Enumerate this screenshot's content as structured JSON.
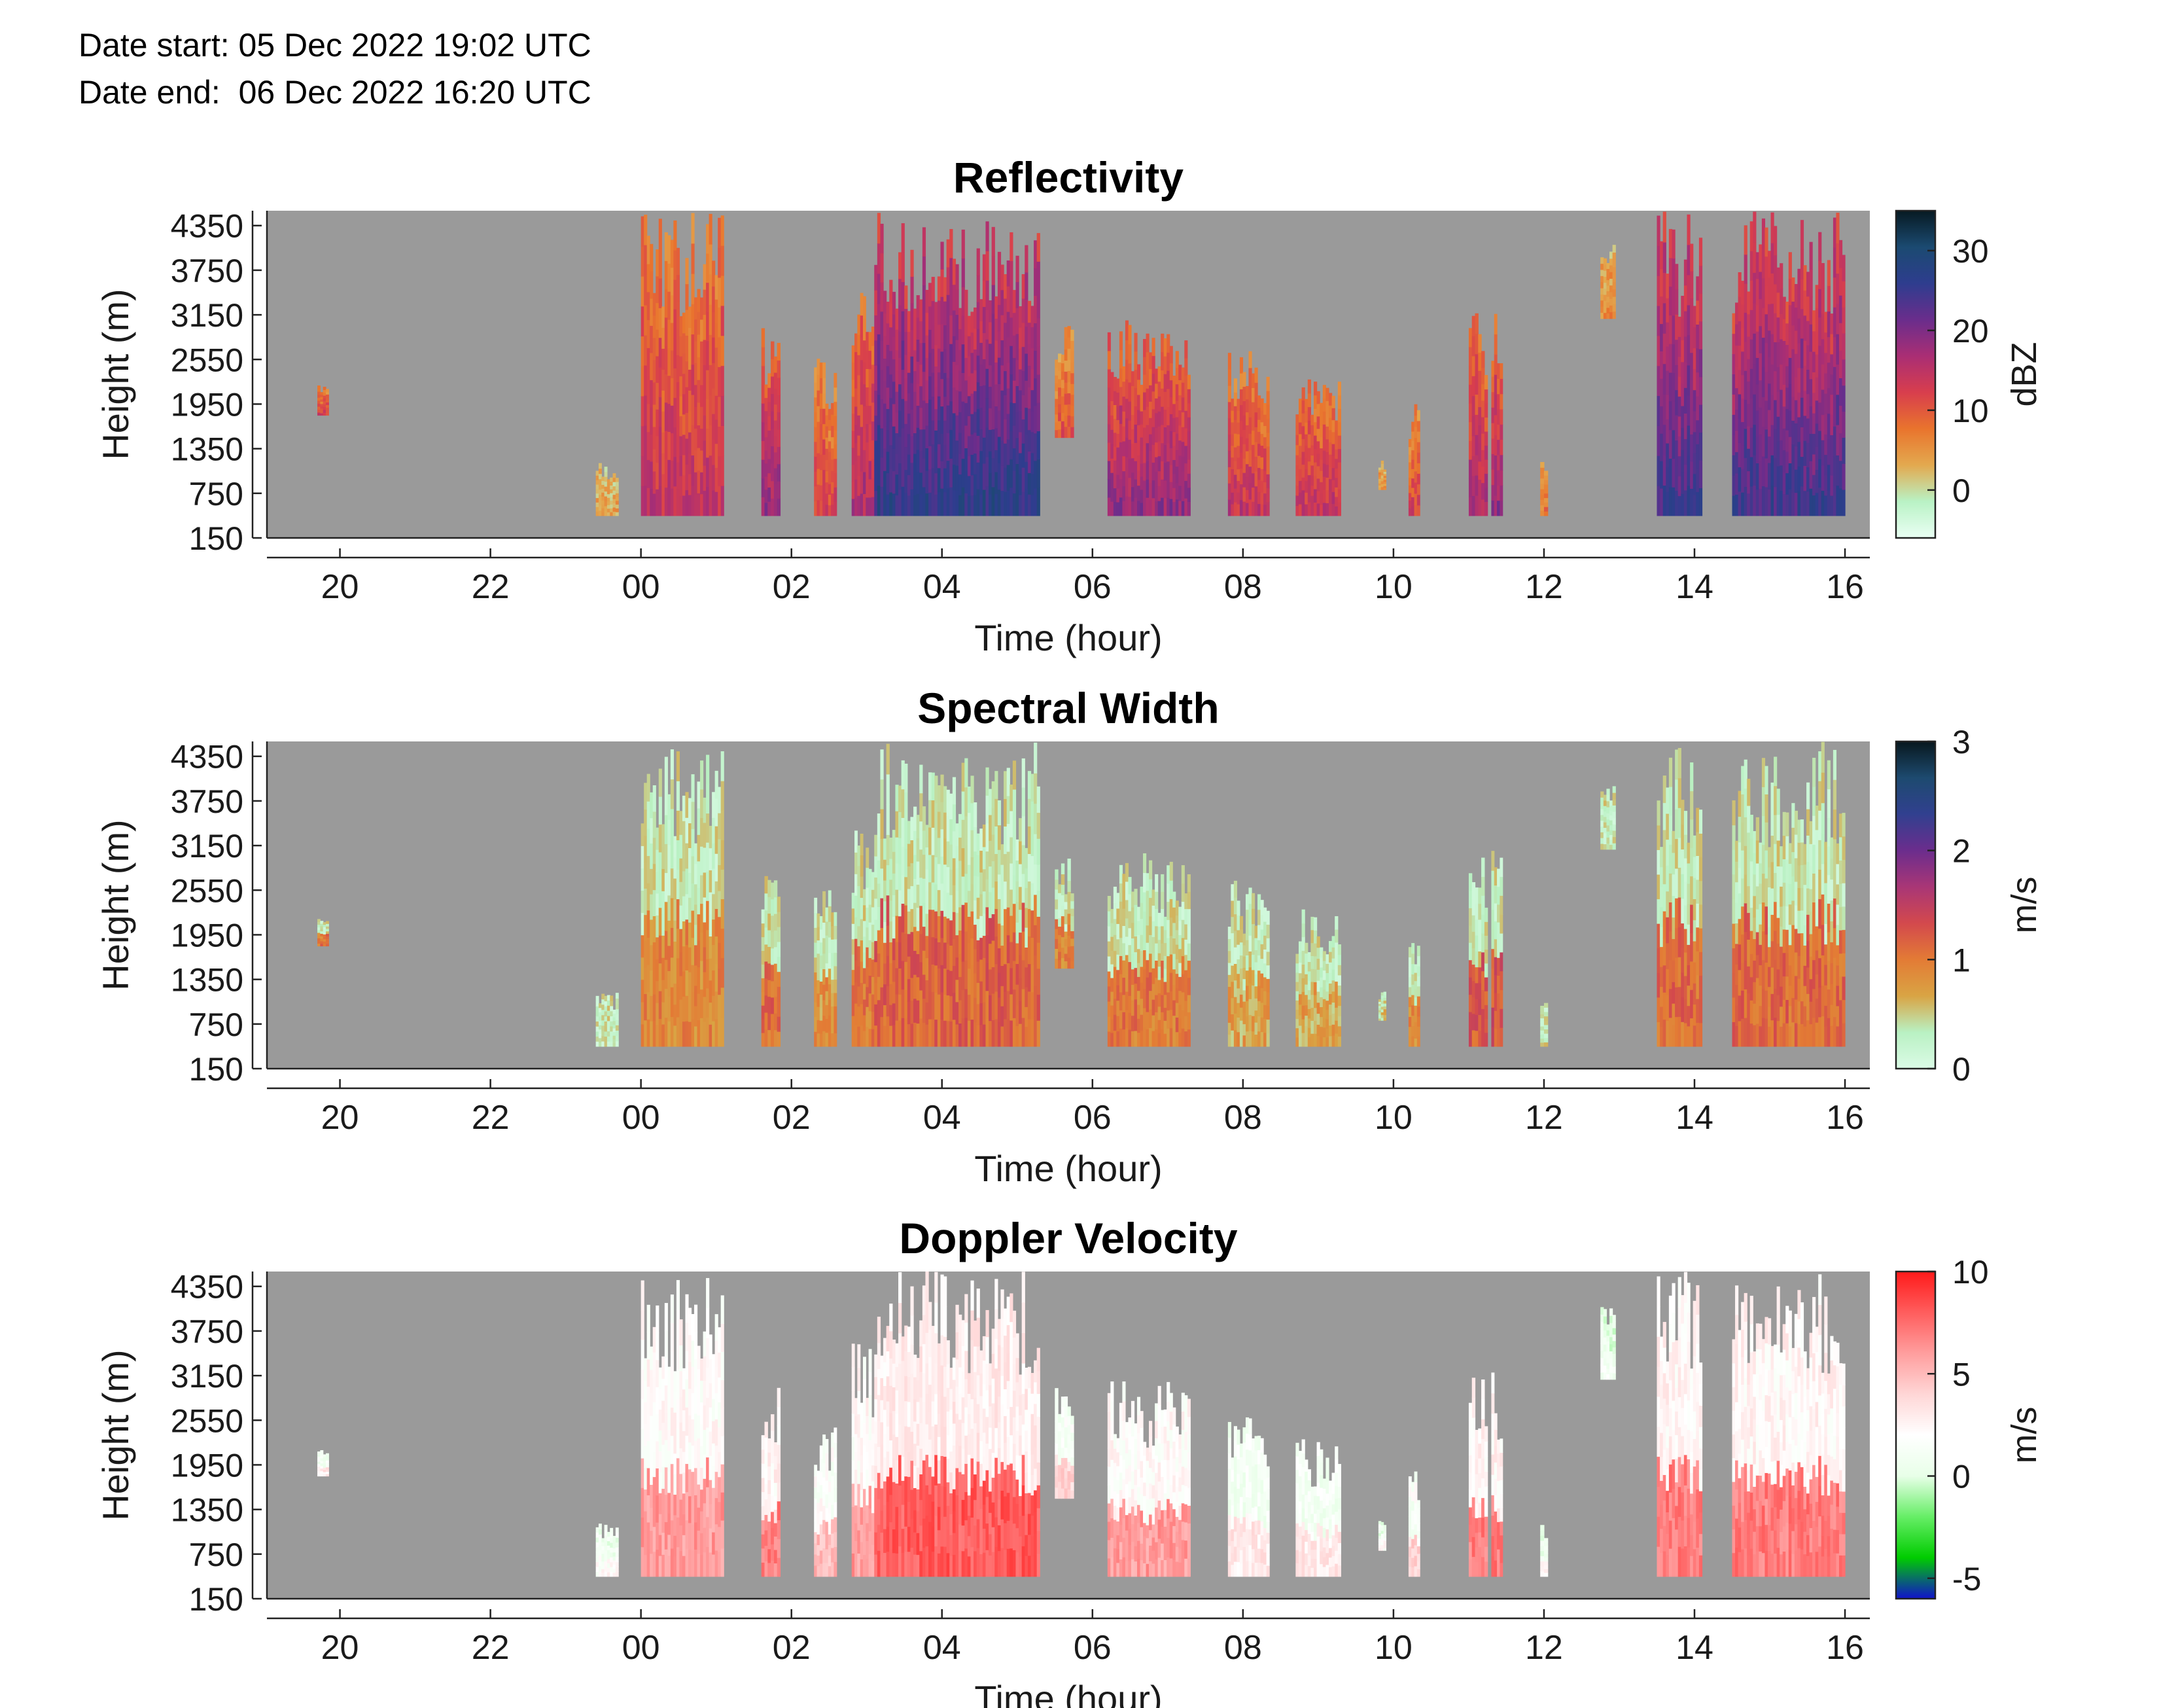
{
  "header": {
    "date_start": "Date start: 05 Dec 2022 19:02 UTC",
    "date_end": "Date end:  06 Dec 2022 16:20 UTC"
  },
  "colors": {
    "background": "#9a9a9a",
    "reflectivity_colormap": [
      "#eafff4",
      "#b9f2c5",
      "#e3a94f",
      "#e9742d",
      "#d83e4d",
      "#aa2e74",
      "#6a2d8c",
      "#2e3d8e",
      "#1b4a71",
      "#071a22"
    ],
    "spectral_width_colormap": [
      "#dbfbe6",
      "#b9f1c3",
      "#d9a444",
      "#e37b35",
      "#d3494d",
      "#a93676",
      "#6b2d8d",
      "#31408f",
      "#1d4a6f",
      "#08181e"
    ],
    "doppler_colormap": [
      "#1111cc",
      "#00cc00",
      "#66ee66",
      "#e8ffe8",
      "#ffffff",
      "#ffd6d6",
      "#ff9e9e",
      "#ff5d5d",
      "#ff1a1a"
    ]
  },
  "chart_data": [
    {
      "type": "heatmap",
      "title": "Reflectivity",
      "xlabel": "Time (hour)",
      "ylabel": "Height (m)",
      "x_ticks": [
        "20",
        "22",
        "00",
        "02",
        "04",
        "06",
        "08",
        "10",
        "12",
        "14",
        "16"
      ],
      "x_tick_values": [
        20,
        22,
        24,
        26,
        28,
        30,
        32,
        34,
        36,
        38,
        40
      ],
      "xlim": [
        19.03,
        40.33
      ],
      "y_ticks": [
        "150",
        "750",
        "1350",
        "1950",
        "2550",
        "3150",
        "3750",
        "4350"
      ],
      "y_tick_values": [
        150,
        750,
        1350,
        1950,
        2550,
        3150,
        3750,
        4350
      ],
      "ylim": [
        150,
        4550
      ],
      "colorbar": {
        "label": "dBZ",
        "ticks": [
          "0",
          "10",
          "20",
          "30"
        ],
        "tick_values": [
          0,
          10,
          20,
          30
        ],
        "range": [
          -6,
          35
        ]
      },
      "cloud_columns": [
        {
          "t0": 19.7,
          "t1": 19.85,
          "top": 2200,
          "bot": 1800,
          "v": 12
        },
        {
          "t0": 23.4,
          "t1": 23.7,
          "top": 1200,
          "bot": 450,
          "v": 4
        },
        {
          "t0": 24.0,
          "t1": 25.1,
          "top": 4550,
          "bot": 450,
          "v": 14
        },
        {
          "t0": 25.6,
          "t1": 25.85,
          "top": 3000,
          "bot": 450,
          "v": 18
        },
        {
          "t0": 26.3,
          "t1": 26.6,
          "top": 2600,
          "bot": 450,
          "v": 12
        },
        {
          "t0": 26.8,
          "t1": 27.1,
          "top": 3600,
          "bot": 450,
          "v": 16
        },
        {
          "t0": 27.1,
          "t1": 29.3,
          "top": 4550,
          "bot": 450,
          "v": 26
        },
        {
          "t0": 29.5,
          "t1": 29.75,
          "top": 3000,
          "bot": 1500,
          "v": 10
        },
        {
          "t0": 30.2,
          "t1": 31.3,
          "top": 3100,
          "bot": 450,
          "v": 18
        },
        {
          "t0": 31.8,
          "t1": 32.35,
          "top": 2700,
          "bot": 450,
          "v": 14
        },
        {
          "t0": 32.7,
          "t1": 33.3,
          "top": 2300,
          "bot": 450,
          "v": 14
        },
        {
          "t0": 33.8,
          "t1": 33.9,
          "top": 1200,
          "bot": 800,
          "v": 6
        },
        {
          "t0": 34.2,
          "t1": 34.35,
          "top": 2000,
          "bot": 450,
          "v": 12
        },
        {
          "t0": 35.0,
          "t1": 35.25,
          "top": 3300,
          "bot": 450,
          "v": 16
        },
        {
          "t0": 35.3,
          "t1": 35.45,
          "top": 3200,
          "bot": 450,
          "v": 18
        },
        {
          "t0": 35.95,
          "t1": 36.05,
          "top": 1200,
          "bot": 450,
          "v": 8
        },
        {
          "t0": 36.75,
          "t1": 36.95,
          "top": 4100,
          "bot": 3100,
          "v": 6
        },
        {
          "t0": 37.5,
          "t1": 38.1,
          "top": 4550,
          "bot": 450,
          "v": 24
        },
        {
          "t0": 38.5,
          "t1": 40.0,
          "top": 4550,
          "bot": 450,
          "v": 24
        }
      ]
    },
    {
      "type": "heatmap",
      "title": "Spectral Width",
      "xlabel": "Time (hour)",
      "ylabel": "Height (m)",
      "x_ticks": [
        "20",
        "22",
        "00",
        "02",
        "04",
        "06",
        "08",
        "10",
        "12",
        "14",
        "16"
      ],
      "x_tick_values": [
        20,
        22,
        24,
        26,
        28,
        30,
        32,
        34,
        36,
        38,
        40
      ],
      "xlim": [
        19.03,
        40.33
      ],
      "y_ticks": [
        "150",
        "750",
        "1350",
        "1950",
        "2550",
        "3150",
        "3750",
        "4350"
      ],
      "y_tick_values": [
        150,
        750,
        1350,
        1950,
        2550,
        3150,
        3750,
        4350
      ],
      "ylim": [
        150,
        4550
      ],
      "colorbar": {
        "label": "m/s",
        "ticks": [
          "0",
          "1",
          "2",
          "3"
        ],
        "tick_values": [
          0,
          1,
          2,
          3
        ],
        "range": [
          0,
          3
        ]
      },
      "cloud_columns": [
        {
          "t0": 19.7,
          "t1": 19.85,
          "top": 2200,
          "bot": 1800,
          "v": 1.0
        },
        {
          "t0": 23.4,
          "t1": 23.7,
          "top": 1200,
          "bot": 450,
          "v": 0.3
        },
        {
          "t0": 24.0,
          "t1": 25.1,
          "top": 4550,
          "bot": 450,
          "v": 0.9
        },
        {
          "t0": 25.6,
          "t1": 25.85,
          "top": 3000,
          "bot": 450,
          "v": 1.1
        },
        {
          "t0": 26.3,
          "t1": 26.6,
          "top": 2600,
          "bot": 450,
          "v": 0.8
        },
        {
          "t0": 26.8,
          "t1": 27.1,
          "top": 3600,
          "bot": 450,
          "v": 1.0
        },
        {
          "t0": 27.1,
          "t1": 29.3,
          "top": 4550,
          "bot": 450,
          "v": 1.15
        },
        {
          "t0": 29.5,
          "t1": 29.75,
          "top": 3000,
          "bot": 1500,
          "v": 0.9
        },
        {
          "t0": 30.2,
          "t1": 31.3,
          "top": 3100,
          "bot": 450,
          "v": 1.0
        },
        {
          "t0": 31.8,
          "t1": 32.35,
          "top": 2700,
          "bot": 450,
          "v": 0.7
        },
        {
          "t0": 32.7,
          "t1": 33.3,
          "top": 2300,
          "bot": 450,
          "v": 0.7
        },
        {
          "t0": 33.8,
          "t1": 33.9,
          "top": 1200,
          "bot": 800,
          "v": 0.5
        },
        {
          "t0": 34.2,
          "t1": 34.35,
          "top": 2000,
          "bot": 450,
          "v": 0.9
        },
        {
          "t0": 35.0,
          "t1": 35.25,
          "top": 3300,
          "bot": 450,
          "v": 1.2
        },
        {
          "t0": 35.3,
          "t1": 35.45,
          "top": 3200,
          "bot": 450,
          "v": 1.3
        },
        {
          "t0": 35.95,
          "t1": 36.05,
          "top": 1200,
          "bot": 450,
          "v": 0.4
        },
        {
          "t0": 36.75,
          "t1": 36.95,
          "top": 4100,
          "bot": 3100,
          "v": 0.3
        },
        {
          "t0": 37.5,
          "t1": 38.1,
          "top": 4550,
          "bot": 450,
          "v": 1.1
        },
        {
          "t0": 38.5,
          "t1": 40.0,
          "top": 4550,
          "bot": 450,
          "v": 1.1
        }
      ]
    },
    {
      "type": "heatmap",
      "title": "Doppler Velocity",
      "xlabel": "Time (hour)",
      "ylabel": "Height (m)",
      "x_ticks": [
        "20",
        "22",
        "00",
        "02",
        "04",
        "06",
        "08",
        "10",
        "12",
        "14",
        "16"
      ],
      "x_tick_values": [
        20,
        22,
        24,
        26,
        28,
        30,
        32,
        34,
        36,
        38,
        40
      ],
      "xlim": [
        19.03,
        40.33
      ],
      "y_ticks": [
        "150",
        "750",
        "1350",
        "1950",
        "2550",
        "3150",
        "3750",
        "4350"
      ],
      "y_tick_values": [
        150,
        750,
        1350,
        1950,
        2550,
        3150,
        3750,
        4350
      ],
      "ylim": [
        150,
        4550
      ],
      "colorbar": {
        "label": "m/s",
        "ticks": [
          "-5",
          "0",
          "5",
          "10"
        ],
        "tick_values": [
          -5,
          0,
          5,
          10
        ],
        "range": [
          -6,
          10
        ]
      },
      "cloud_columns": [
        {
          "t0": 19.7,
          "t1": 19.85,
          "top": 2200,
          "bot": 1800,
          "v": 3
        },
        {
          "t0": 23.4,
          "t1": 23.7,
          "top": 1200,
          "bot": 450,
          "v": 2
        },
        {
          "t0": 24.0,
          "t1": 25.1,
          "top": 4550,
          "bot": 450,
          "v": 6
        },
        {
          "t0": 25.6,
          "t1": 25.85,
          "top": 3000,
          "bot": 450,
          "v": 7
        },
        {
          "t0": 26.3,
          "t1": 26.6,
          "top": 2600,
          "bot": 450,
          "v": 5
        },
        {
          "t0": 26.8,
          "t1": 27.1,
          "top": 3600,
          "bot": 450,
          "v": 6
        },
        {
          "t0": 27.1,
          "t1": 29.3,
          "top": 4550,
          "bot": 450,
          "v": 8
        },
        {
          "t0": 29.5,
          "t1": 29.75,
          "top": 3000,
          "bot": 1500,
          "v": 4
        },
        {
          "t0": 30.2,
          "t1": 31.3,
          "top": 3100,
          "bot": 450,
          "v": 6
        },
        {
          "t0": 31.8,
          "t1": 32.35,
          "top": 2700,
          "bot": 450,
          "v": 3
        },
        {
          "t0": 32.7,
          "t1": 33.3,
          "top": 2300,
          "bot": 450,
          "v": 3
        },
        {
          "t0": 33.8,
          "t1": 33.9,
          "top": 1200,
          "bot": 800,
          "v": 2
        },
        {
          "t0": 34.2,
          "t1": 34.35,
          "top": 2000,
          "bot": 450,
          "v": 4
        },
        {
          "t0": 35.0,
          "t1": 35.25,
          "top": 3300,
          "bot": 450,
          "v": 7
        },
        {
          "t0": 35.3,
          "t1": 35.45,
          "top": 3200,
          "bot": 450,
          "v": 7
        },
        {
          "t0": 35.95,
          "t1": 36.05,
          "top": 1200,
          "bot": 450,
          "v": 2
        },
        {
          "t0": 36.75,
          "t1": 36.95,
          "top": 4100,
          "bot": 3100,
          "v": 1
        },
        {
          "t0": 37.5,
          "t1": 38.1,
          "top": 4550,
          "bot": 450,
          "v": 7
        },
        {
          "t0": 38.5,
          "t1": 40.0,
          "top": 4550,
          "bot": 450,
          "v": 7
        }
      ]
    }
  ]
}
